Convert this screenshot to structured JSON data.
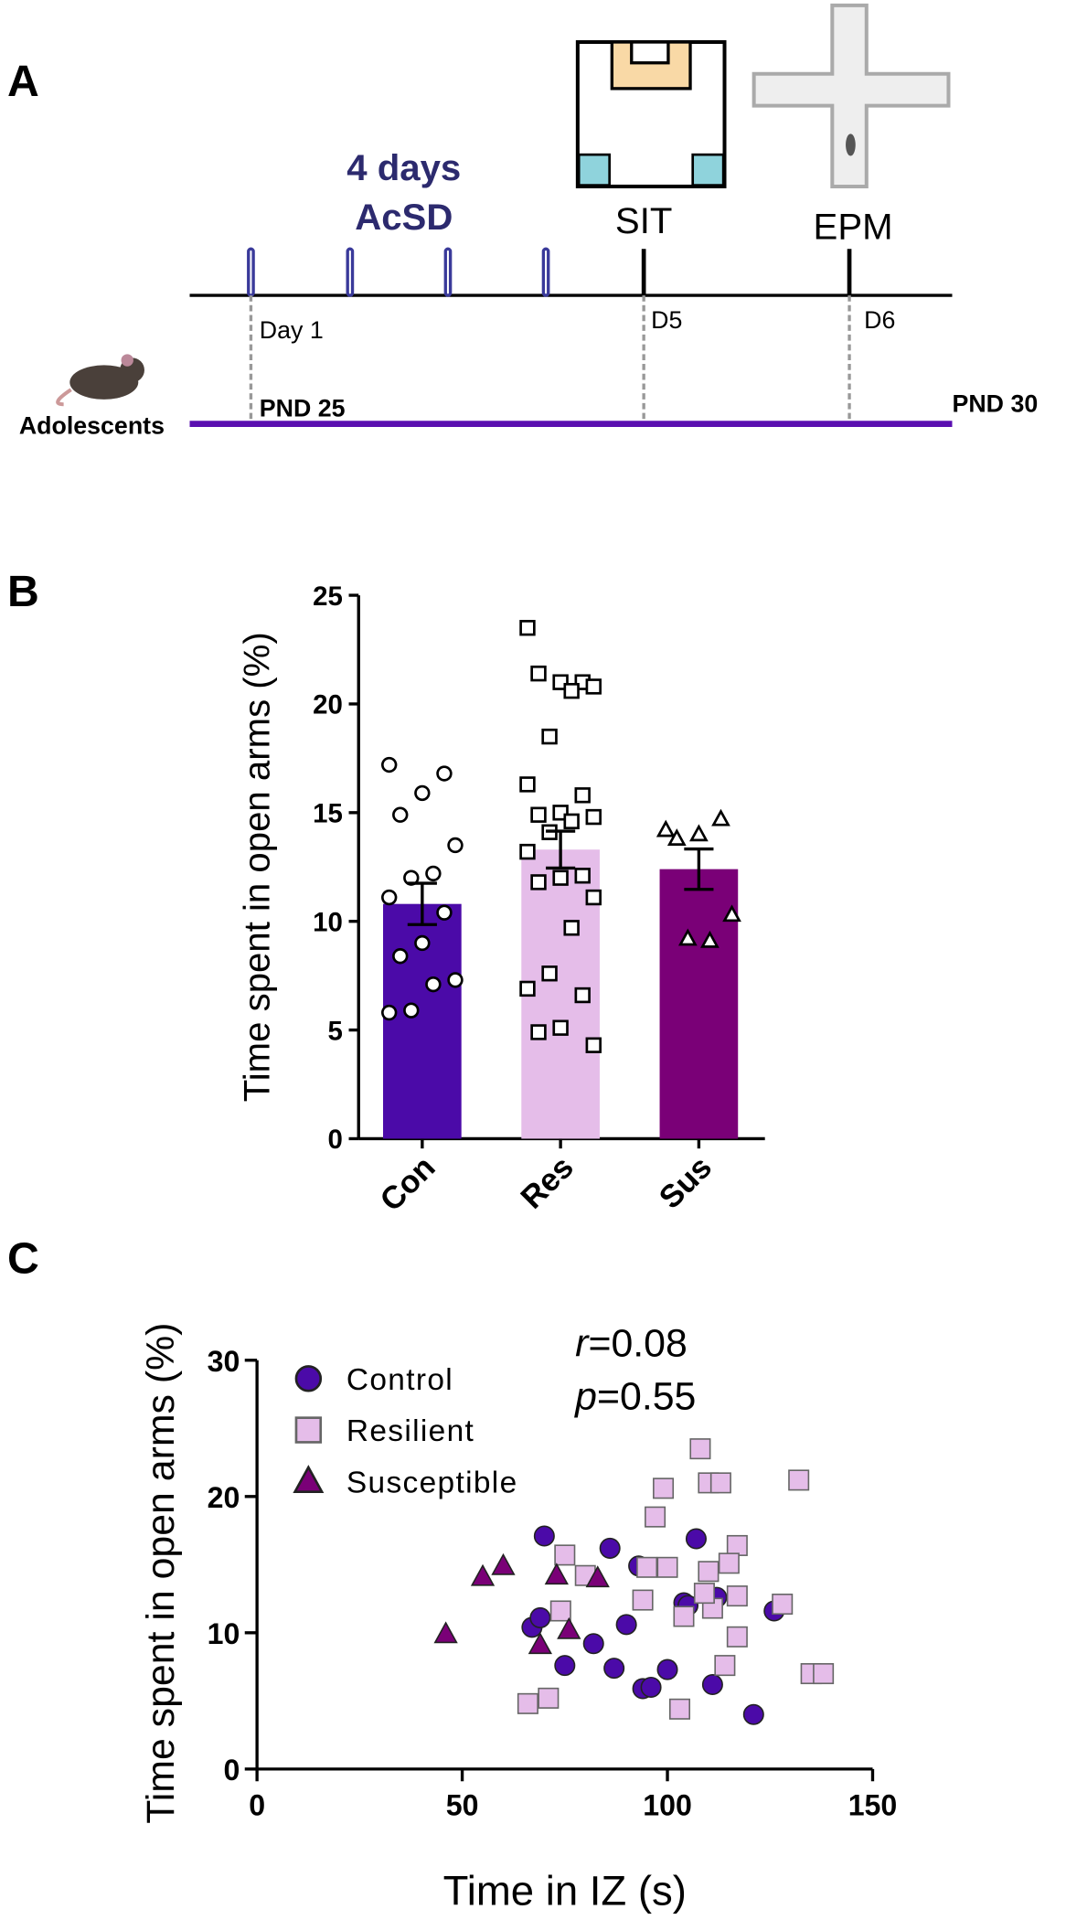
{
  "panel_a": {
    "label": "A",
    "days": "4 days",
    "procedure": "AcSD",
    "sit": "SIT",
    "epm": "EPM",
    "day1": "Day 1",
    "d5": "D5",
    "d6": "D6",
    "group": "Adolescents",
    "pnd_start": "PND 25",
    "pnd_end": "PND 30"
  },
  "chart_data": [
    {
      "type": "bar",
      "panel": "B",
      "ylabel": "Time spent in open arms (%)",
      "categories": [
        "Con",
        "Res",
        "Sus"
      ],
      "values": [
        10.8,
        13.3,
        12.4
      ],
      "errors": [
        0.95,
        0.85,
        0.93
      ],
      "colors": [
        "#4b0aa8",
        "#e5bde9",
        "#7a0077"
      ],
      "markers": [
        "circle",
        "square",
        "triangle"
      ],
      "points": [
        [
          17.2,
          16.8,
          15.9,
          14.9,
          13.5,
          12.2,
          12.0,
          11.1,
          10.4,
          9.0,
          8.4,
          7.3,
          7.1,
          5.9,
          5.8
        ],
        [
          23.5,
          21.0,
          21.0,
          21.4,
          20.8,
          20.6,
          18.5,
          16.3,
          15.8,
          15.0,
          14.9,
          14.8,
          14.6,
          14.1,
          13.2,
          12.1,
          12.0,
          11.8,
          11.1,
          9.7,
          7.6,
          6.9,
          6.6,
          5.1,
          4.9,
          4.3
        ],
        [
          14.2,
          14.7,
          14.0,
          13.8,
          10.3,
          9.1,
          9.2
        ]
      ],
      "ylim": [
        0,
        25
      ],
      "yticks": [
        0,
        5,
        10,
        15,
        20,
        25
      ]
    },
    {
      "type": "scatter",
      "panel": "C",
      "xlabel": "Time in IZ (s)",
      "ylabel": "Time spent in open arms (%)",
      "annotations": [
        {
          "symbol": "r",
          "text": "=0.08"
        },
        {
          "symbol": "p",
          "text": "=0.55"
        }
      ],
      "series": [
        {
          "name": "Control",
          "color": "#4b0aa8",
          "marker": "circle",
          "x": [
            70,
            86,
            107,
            93,
            104,
            112,
            126,
            67,
            69,
            90,
            82,
            75,
            87,
            100,
            94,
            96,
            111,
            121,
            105
          ],
          "values": [
            17.1,
            16.2,
            16.9,
            14.9,
            12.2,
            12.6,
            11.6,
            10.4,
            11.1,
            10.6,
            9.2,
            7.6,
            7.4,
            7.3,
            5.9,
            6.0,
            6.2,
            4.0,
            12.0
          ]
        },
        {
          "name": "Resilient",
          "color": "#e5bde9",
          "marker": "square",
          "x": [
            108,
            110,
            113,
            132,
            99,
            97,
            117,
            75,
            115,
            95,
            100,
            110,
            80,
            74,
            94,
            104,
            111,
            117,
            128,
            117,
            114,
            135,
            138,
            66,
            71,
            103,
            109
          ],
          "values": [
            23.5,
            21.0,
            21.0,
            21.2,
            20.6,
            18.5,
            16.4,
            15.7,
            15.1,
            14.8,
            14.8,
            14.5,
            14.2,
            11.6,
            12.4,
            11.2,
            11.8,
            12.7,
            12.1,
            9.7,
            7.6,
            7.0,
            7.0,
            4.8,
            5.2,
            4.4,
            12.9
          ]
        },
        {
          "name": "Susceptible",
          "color": "#7a0077",
          "marker": "triangle",
          "x": [
            46,
            55,
            60,
            73,
            83,
            76,
            69
          ],
          "values": [
            9.9,
            14.1,
            14.9,
            14.2,
            14.0,
            10.2,
            9.1
          ]
        }
      ],
      "xlim": [
        0,
        150
      ],
      "xticks": [
        0,
        50,
        100,
        150
      ],
      "ylim": [
        0,
        30
      ],
      "yticks": [
        0,
        10,
        20,
        30
      ]
    }
  ]
}
